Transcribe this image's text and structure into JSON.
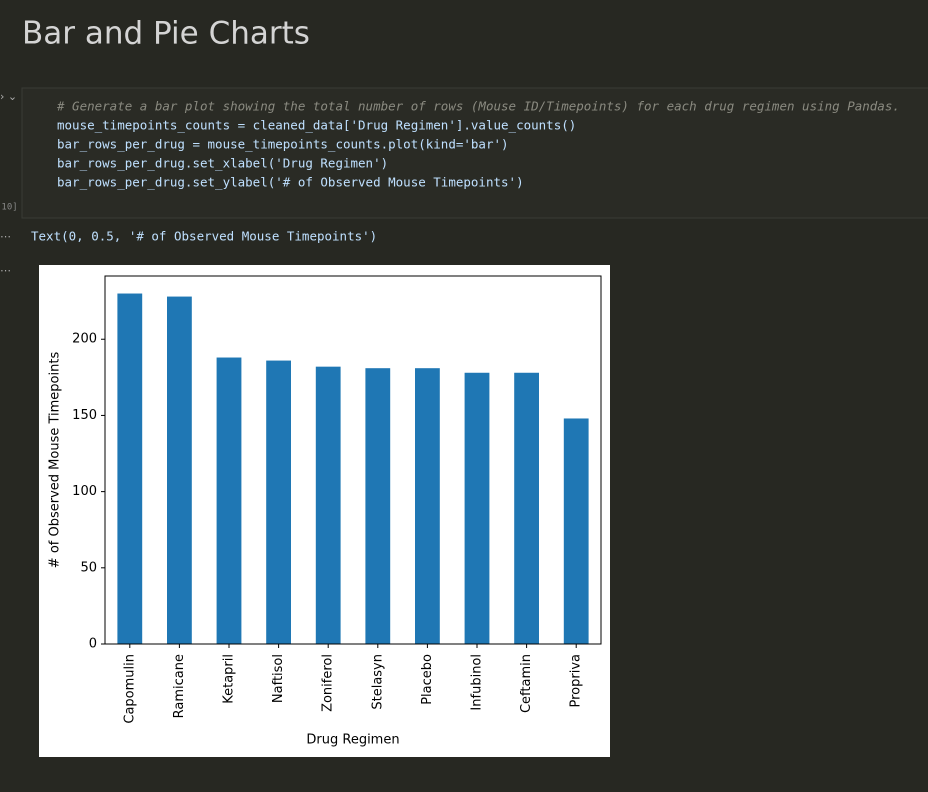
{
  "header": {
    "title": "Bar and Pie Charts"
  },
  "cell": {
    "execution_count": "[10]",
    "code": [
      "# Generate a bar plot showing the total number of rows (Mouse ID/Timepoints) for each drug regimen using Pandas.",
      "mouse_timepoints_counts = cleaned_data['Drug Regimen'].value_counts()",
      "bar_rows_per_drug = mouse_timepoints_counts.plot(kind='bar')",
      "bar_rows_per_drug.set_xlabel('Drug Regimen')",
      "bar_rows_per_drug.set_ylabel('# of Observed Mouse Timepoints')"
    ],
    "output": "Text(0, 0.5, '# of Observed Mouse Timepoints')"
  },
  "chart_data": {
    "type": "bar",
    "x_label": "Drug Regimen",
    "y_label": "# of Observed Mouse Timepoints",
    "categories": [
      "Capomulin",
      "Ramicane",
      "Ketapril",
      "Naftisol",
      "Zoniferol",
      "Stelasyn",
      "Placebo",
      "Infubinol",
      "Ceftamin",
      "Propriva"
    ],
    "values": [
      230,
      228,
      188,
      186,
      182,
      181,
      181,
      178,
      178,
      148
    ],
    "color": "#1f77b4",
    "ylim": [
      0,
      241.5
    ],
    "yticks": [
      0,
      50,
      100,
      150,
      200
    ],
    "grid": false
  }
}
